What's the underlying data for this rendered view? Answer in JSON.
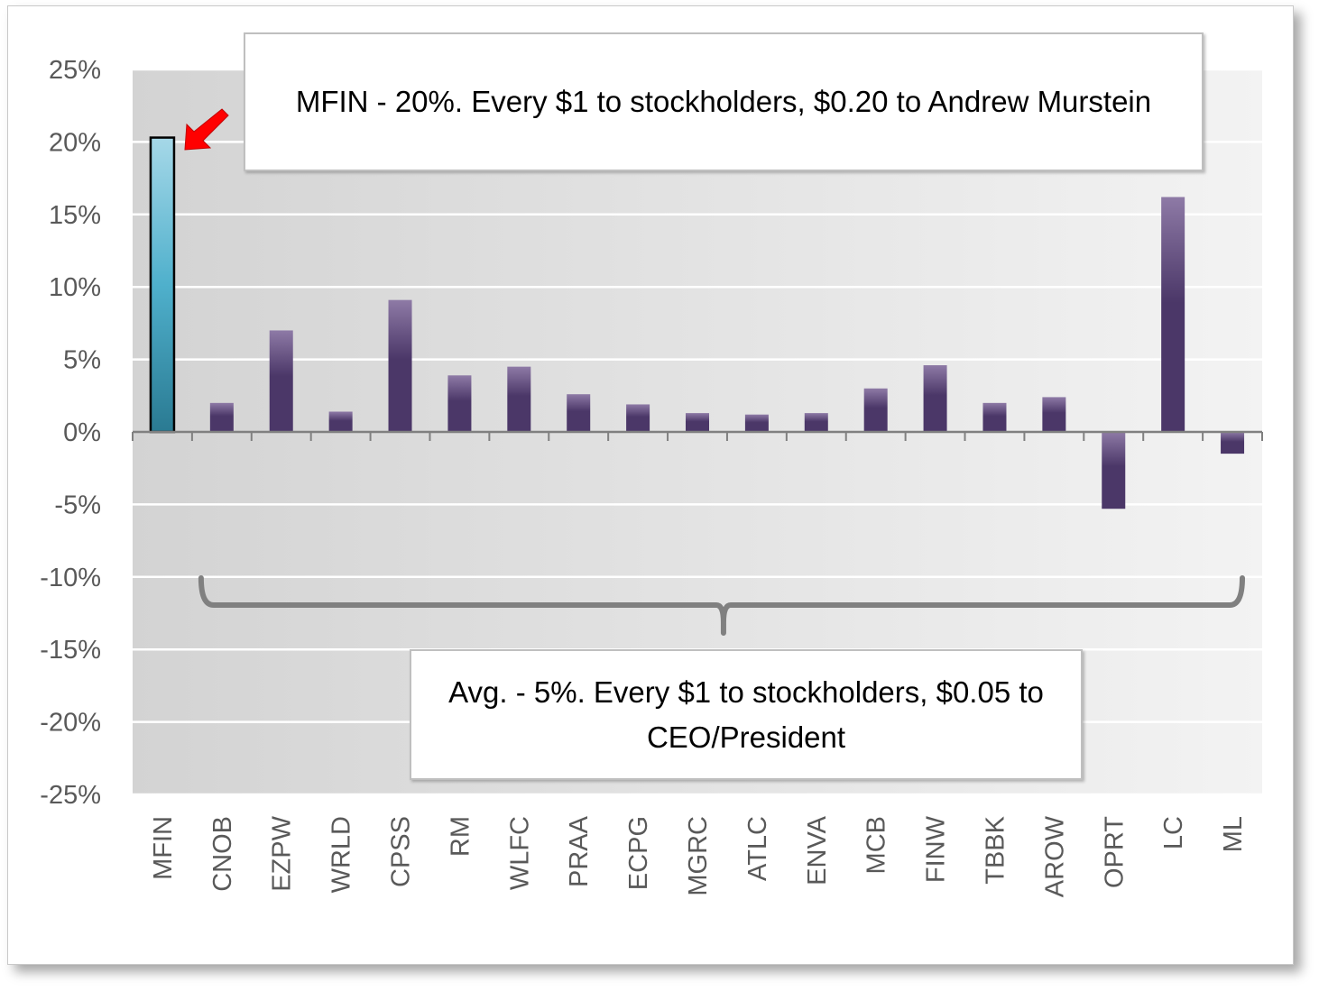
{
  "chart_data": {
    "type": "bar",
    "title": "",
    "xlabel": "",
    "ylabel": "",
    "ylim": [
      -25,
      25
    ],
    "y_ticks": [
      25,
      20,
      15,
      10,
      5,
      0,
      -5,
      -10,
      -15,
      -20,
      -25
    ],
    "y_tick_labels": [
      "25%",
      "20%",
      "15%",
      "10%",
      "5%",
      "0%",
      "-5%",
      "-10%",
      "-15%",
      "-20%",
      "-25%"
    ],
    "grid": true,
    "categories": [
      "MFIN",
      "CNOB",
      "EZPW",
      "WRLD",
      "CPSS",
      "RM",
      "WLFC",
      "PRAA",
      "ECPG",
      "MGRC",
      "ATLC",
      "ENVA",
      "MCB",
      "FINW",
      "TBBK",
      "AROW",
      "OPRT",
      "LC",
      "ML"
    ],
    "values": [
      20.3,
      2.0,
      7.0,
      1.4,
      9.1,
      3.9,
      4.5,
      2.6,
      1.9,
      1.3,
      1.2,
      1.3,
      3.0,
      4.6,
      2.0,
      2.4,
      -5.3,
      16.2,
      -1.5
    ],
    "highlight_category": "MFIN",
    "colors": {
      "highlight_top": "#9fd4e6",
      "highlight_bottom": "#2b8aa5",
      "bar_light": "#8e7aa6",
      "bar_dark": "#4b3768",
      "arrow": "#ff0000",
      "brace": "#808080"
    },
    "annotations": [
      "MFIN - 20%.  Every $1 to stockholders, $0.20 to Andrew Murstein",
      "Avg. - 5%. Every $1 to stockholders, $0.05 to CEO/President"
    ]
  }
}
